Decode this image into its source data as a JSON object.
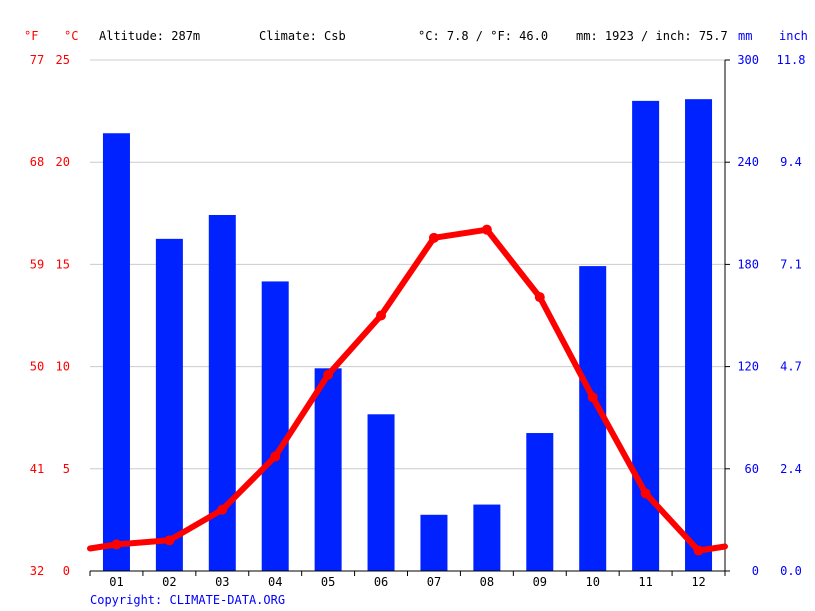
{
  "header": {
    "altitude": "Altitude: 287m",
    "climate": "Climate: Csb",
    "avg_temp": "°C: 7.8 / °F: 46.0",
    "precip_total": "mm: 1923 / inch: 75.7"
  },
  "axis_units": {
    "fahrenheit": "°F",
    "celsius": "°C",
    "mm": "mm",
    "inch": "inch"
  },
  "copyright": "Copyright: CLIMATE-DATA.ORG",
  "colors": {
    "temperature": "#ff0000",
    "precipitation": "#0022ff",
    "grid": "#cccccc",
    "axis": "#000000"
  },
  "chart_data": {
    "type": "bar+line",
    "categories": [
      "01",
      "02",
      "03",
      "04",
      "05",
      "06",
      "07",
      "08",
      "09",
      "10",
      "11",
      "12"
    ],
    "series": [
      {
        "type": "bar",
        "axis": "right",
        "unit": "mm",
        "values": [
          257,
          195,
          209,
          170,
          119,
          92,
          33,
          39,
          81,
          179,
          276,
          277
        ]
      },
      {
        "type": "line",
        "axis": "left",
        "unit": "°C",
        "values": [
          1.3,
          1.5,
          3.0,
          5.6,
          9.6,
          12.5,
          16.3,
          16.7,
          13.4,
          8.5,
          3.8,
          1.0
        ]
      }
    ],
    "line_edge_values": {
      "start": 1.1,
      "end": 1.2
    },
    "left_axis": {
      "celsius_ticks": [
        0,
        5,
        10,
        15,
        20,
        25
      ],
      "fahrenheit_ticks": [
        "32",
        "41",
        "50",
        "59",
        "68",
        "77"
      ],
      "ylim": [
        0,
        25
      ]
    },
    "right_axis": {
      "mm_ticks": [
        0,
        60,
        120,
        180,
        240,
        300
      ],
      "inch_ticks": [
        "0.0",
        "2.4",
        "4.7",
        "7.1",
        "9.4",
        "11.8"
      ],
      "ylim": [
        0,
        300
      ]
    },
    "grid": true
  }
}
